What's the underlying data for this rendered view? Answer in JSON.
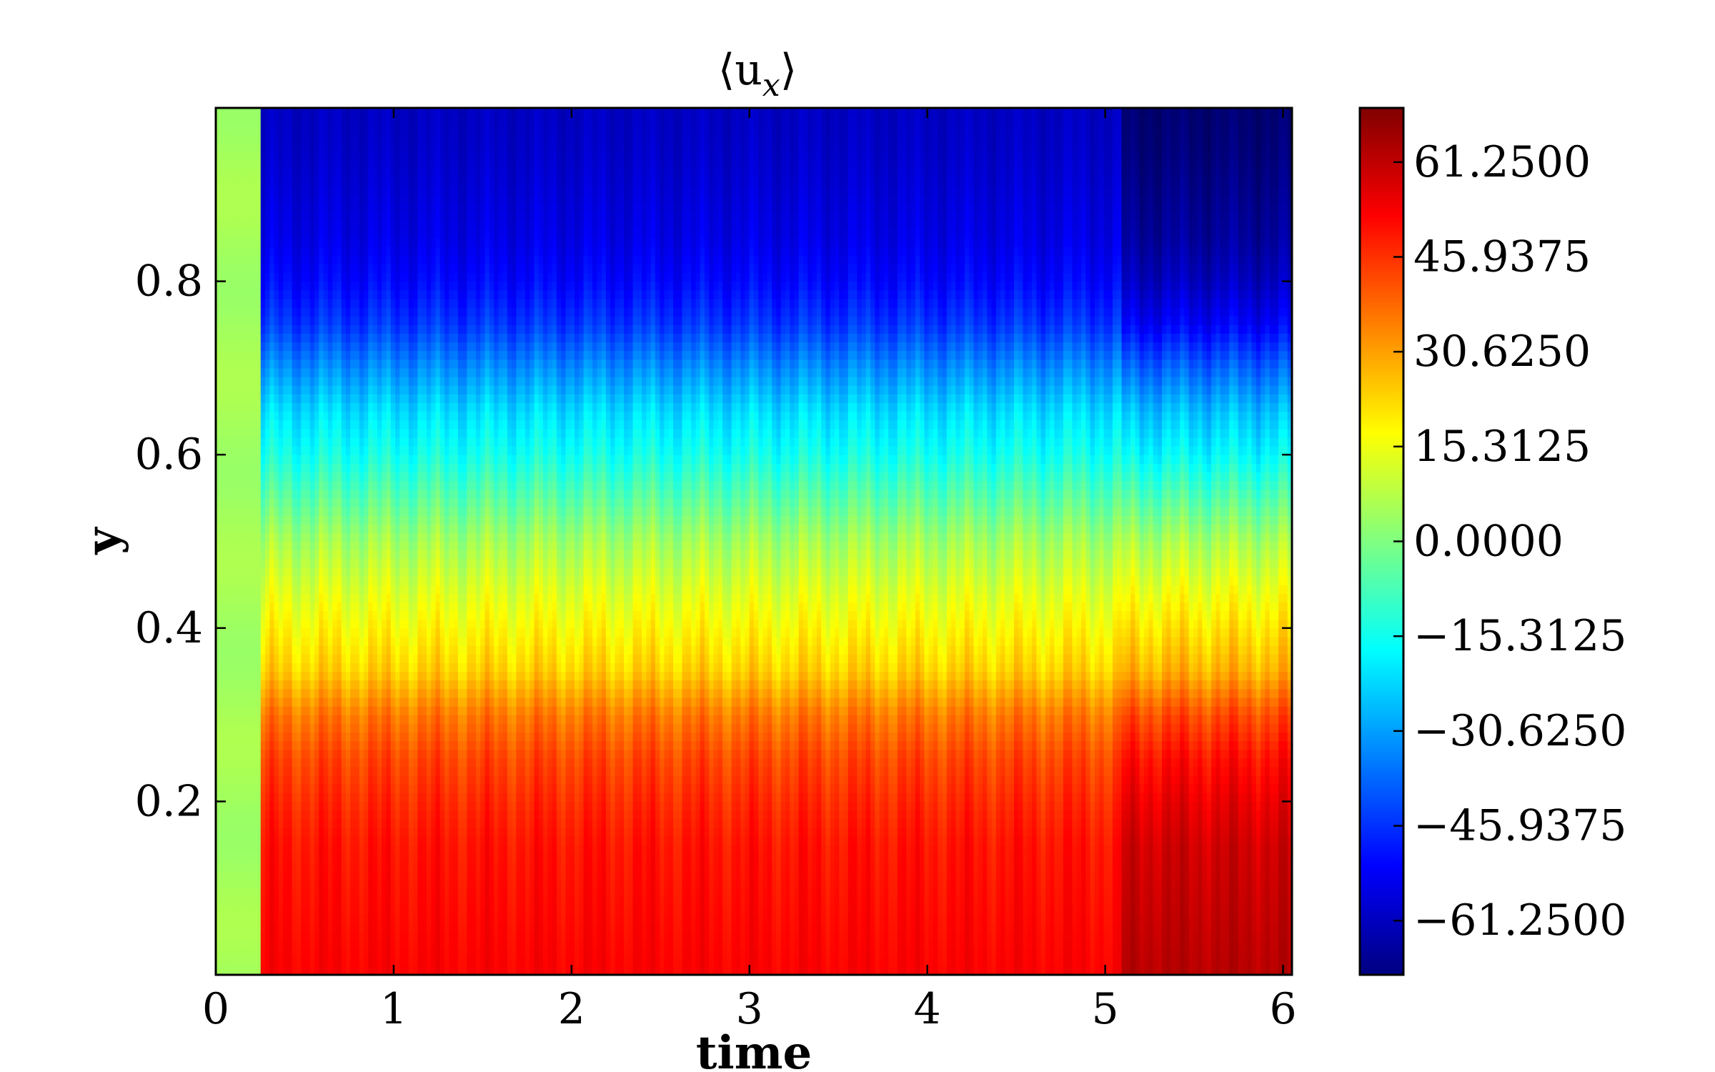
{
  "chart_data": {
    "type": "heatmap",
    "title": "⟨u",
    "title_subscript": "x",
    "title_close": "⟩",
    "xlabel": "time",
    "ylabel": "y",
    "xlim": [
      0,
      6.05
    ],
    "ylim": [
      0,
      1.0
    ],
    "xticks": [
      0,
      1,
      2,
      3,
      4,
      5,
      6
    ],
    "xtick_labels": [
      "0",
      "1",
      "2",
      "3",
      "4",
      "5",
      "6"
    ],
    "yticks": [
      0.2,
      0.4,
      0.6,
      0.8
    ],
    "ytick_labels": [
      "0.2",
      "0.4",
      "0.6",
      "0.8"
    ],
    "colormap": "jet",
    "colorbar": {
      "vmin": -70,
      "vmax": 70,
      "ticks": [
        61.25,
        45.9375,
        30.625,
        15.3125,
        0.0,
        -15.3125,
        -30.625,
        -45.9375,
        -61.25
      ],
      "tick_labels": [
        "61.2500",
        "45.9375",
        "30.6250",
        "15.3125",
        "0.0000",
        "−15.3125",
        "−30.6250",
        "−45.9375",
        "−61.2500"
      ]
    },
    "transient_end_time": 0.25,
    "initial_value": 5,
    "mean_profile": {
      "y": [
        0.0,
        0.05,
        0.1,
        0.15,
        0.2,
        0.25,
        0.3,
        0.35,
        0.4,
        0.45,
        0.5,
        0.55,
        0.6,
        0.65,
        0.7,
        0.75,
        0.8,
        0.85,
        0.9,
        0.95,
        1.0
      ],
      "u": [
        53,
        52,
        51,
        50,
        47,
        43,
        36,
        24,
        18,
        12,
        5,
        -5,
        -15,
        -22,
        -33,
        -45,
        -52,
        -56,
        -58,
        -60,
        -61
      ]
    },
    "late_amplification_start": 5.1,
    "late_amplification_factor": 1.18
  }
}
